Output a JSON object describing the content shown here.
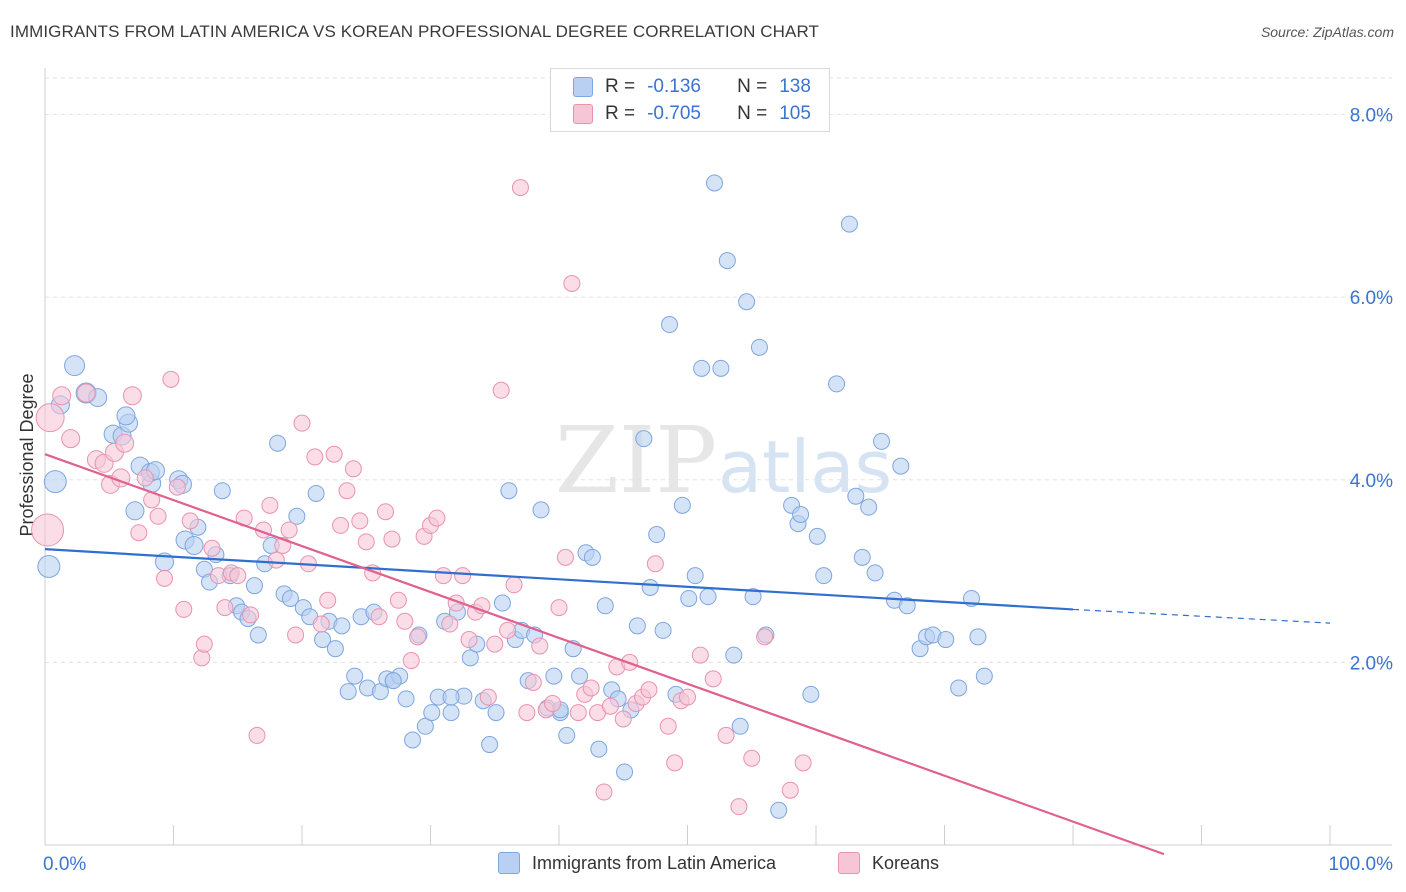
{
  "title": "IMMIGRANTS FROM LATIN AMERICA VS KOREAN PROFESSIONAL DEGREE CORRELATION CHART",
  "source": "Source: ZipAtlas.com",
  "watermark": {
    "zip": "ZIP",
    "atlas": "atlas"
  },
  "legend": {
    "rows": [
      {
        "r_label": "R =",
        "r_value": "-0.136",
        "n_label": "N =",
        "n_value": "138"
      },
      {
        "r_label": "R =",
        "r_value": "-0.705",
        "n_label": "N =",
        "n_value": "105"
      }
    ]
  },
  "bottom_legend": [
    "Immigrants from Latin America",
    "Koreans"
  ],
  "colors": {
    "blue_fill": "#b9d0f2",
    "blue_stroke": "#7ea6e0",
    "blue_line": "#2f6fcf",
    "pink_fill": "#f7c6d6",
    "pink_stroke": "#ea92b0",
    "pink_line": "#e0608e",
    "tick_label": "#3b74d0",
    "grid": "#e3e3e3"
  },
  "chart_data": {
    "type": "scatter",
    "xlabel": "",
    "ylabel": "Professional Degree",
    "xlim": [
      0,
      100
    ],
    "ylim": [
      0,
      8.4
    ],
    "x_tick_labels": [
      "0.0%",
      "100.0%"
    ],
    "y_ticks": [
      2,
      4,
      6,
      8
    ],
    "y_tick_labels": [
      "2.0%",
      "4.0%",
      "6.0%",
      "8.0%"
    ],
    "grid": "horizontal dashed",
    "series": [
      {
        "name": "Immigrants from Latin America",
        "trend": {
          "x0": 0,
          "y0": 3.24,
          "x1": 80,
          "y1": 2.58,
          "dash_to_x": 100,
          "dash_to_y": 2.43
        },
        "points": [
          [
            0.3,
            3.05,
            11
          ],
          [
            0.8,
            3.98,
            11
          ],
          [
            1.2,
            4.82,
            9
          ],
          [
            2.3,
            5.25,
            10
          ],
          [
            3.2,
            4.95,
            10
          ],
          [
            4.1,
            4.9,
            9
          ],
          [
            5.3,
            4.5,
            9
          ],
          [
            6.0,
            4.48,
            9
          ],
          [
            6.5,
            4.62,
            9
          ],
          [
            6.3,
            4.7,
            9
          ],
          [
            7.0,
            3.66,
            9
          ],
          [
            7.4,
            4.15,
            9
          ],
          [
            8.3,
            3.96,
            9
          ],
          [
            8.2,
            4.08,
            9
          ],
          [
            8.6,
            4.1,
            9
          ],
          [
            9.3,
            3.1,
            9
          ],
          [
            10.4,
            4.0,
            9
          ],
          [
            10.7,
            3.95,
            9
          ],
          [
            10.9,
            3.34,
            9
          ],
          [
            11.6,
            3.28,
            9
          ],
          [
            11.9,
            3.48,
            8
          ],
          [
            12.4,
            3.02,
            8
          ],
          [
            12.8,
            2.88,
            8
          ],
          [
            13.3,
            3.18,
            8
          ],
          [
            13.8,
            3.88,
            8
          ],
          [
            14.4,
            2.95,
            8
          ],
          [
            14.9,
            2.62,
            8
          ],
          [
            15.3,
            2.55,
            8
          ],
          [
            15.8,
            2.48,
            8
          ],
          [
            16.3,
            2.84,
            8
          ],
          [
            16.6,
            2.3,
            8
          ],
          [
            17.1,
            3.08,
            8
          ],
          [
            17.6,
            3.28,
            8
          ],
          [
            18.1,
            4.4,
            8
          ],
          [
            18.6,
            2.75,
            8
          ],
          [
            19.1,
            2.7,
            8
          ],
          [
            19.6,
            3.6,
            8
          ],
          [
            20.1,
            2.6,
            8
          ],
          [
            20.6,
            2.5,
            8
          ],
          [
            21.1,
            3.85,
            8
          ],
          [
            21.6,
            2.25,
            8
          ],
          [
            22.1,
            2.45,
            8
          ],
          [
            22.6,
            2.15,
            8
          ],
          [
            23.1,
            2.4,
            8
          ],
          [
            23.6,
            1.68,
            8
          ],
          [
            24.1,
            1.85,
            8
          ],
          [
            24.6,
            2.5,
            8
          ],
          [
            25.1,
            1.72,
            8
          ],
          [
            25.6,
            2.55,
            8
          ],
          [
            26.1,
            1.68,
            8
          ],
          [
            26.6,
            1.82,
            8
          ],
          [
            27.1,
            1.8,
            8
          ],
          [
            27.6,
            1.85,
            8
          ],
          [
            28.1,
            1.6,
            8
          ],
          [
            28.6,
            1.15,
            8
          ],
          [
            29.1,
            2.3,
            8
          ],
          [
            29.6,
            1.3,
            8
          ],
          [
            30.1,
            1.45,
            8
          ],
          [
            30.6,
            1.62,
            8
          ],
          [
            31.1,
            2.45,
            8
          ],
          [
            31.6,
            1.45,
            8
          ],
          [
            32.1,
            2.55,
            8
          ],
          [
            32.6,
            1.63,
            8
          ],
          [
            33.1,
            2.05,
            8
          ],
          [
            33.6,
            2.2,
            8
          ],
          [
            34.1,
            1.58,
            8
          ],
          [
            34.6,
            1.1,
            8
          ],
          [
            35.1,
            1.45,
            8
          ],
          [
            35.6,
            2.65,
            8
          ],
          [
            36.1,
            3.88,
            8
          ],
          [
            36.6,
            2.25,
            8
          ],
          [
            37.1,
            2.35,
            8
          ],
          [
            37.6,
            1.8,
            8
          ],
          [
            38.1,
            2.3,
            8
          ],
          [
            38.6,
            3.67,
            8
          ],
          [
            39.1,
            1.5,
            8
          ],
          [
            39.6,
            1.85,
            8
          ],
          [
            40.1,
            1.45,
            8
          ],
          [
            40.6,
            1.2,
            8
          ],
          [
            41.1,
            2.15,
            8
          ],
          [
            41.6,
            1.85,
            8
          ],
          [
            42.1,
            3.2,
            8
          ],
          [
            42.6,
            3.15,
            8
          ],
          [
            43.1,
            1.05,
            8
          ],
          [
            43.6,
            2.62,
            8
          ],
          [
            44.1,
            1.7,
            8
          ],
          [
            44.6,
            1.6,
            8
          ],
          [
            45.1,
            0.8,
            8
          ],
          [
            45.6,
            1.48,
            8
          ],
          [
            46.1,
            2.4,
            8
          ],
          [
            46.6,
            4.45,
            8
          ],
          [
            47.1,
            2.82,
            8
          ],
          [
            47.6,
            3.4,
            8
          ],
          [
            48.1,
            2.35,
            8
          ],
          [
            48.6,
            5.7,
            8
          ],
          [
            49.1,
            1.65,
            8
          ],
          [
            49.6,
            3.72,
            8
          ],
          [
            50.1,
            2.7,
            8
          ],
          [
            50.6,
            2.95,
            8
          ],
          [
            51.1,
            5.22,
            8
          ],
          [
            51.6,
            2.72,
            8
          ],
          [
            52.1,
            7.25,
            8
          ],
          [
            52.6,
            5.22,
            8
          ],
          [
            53.1,
            6.4,
            8
          ],
          [
            53.6,
            2.08,
            8
          ],
          [
            54.1,
            1.3,
            8
          ],
          [
            54.6,
            5.95,
            8
          ],
          [
            55.1,
            2.72,
            8
          ],
          [
            55.6,
            5.45,
            8
          ],
          [
            56.1,
            2.3,
            8
          ],
          [
            57.1,
            0.38,
            8
          ],
          [
            58.1,
            3.72,
            8
          ],
          [
            58.6,
            3.52,
            8
          ],
          [
            58.8,
            3.62,
            8
          ],
          [
            59.6,
            1.65,
            8
          ],
          [
            60.1,
            3.38,
            8
          ],
          [
            60.6,
            2.95,
            8
          ],
          [
            61.6,
            5.05,
            8
          ],
          [
            62.6,
            6.8,
            8
          ],
          [
            63.1,
            3.82,
            8
          ],
          [
            63.6,
            3.15,
            8
          ],
          [
            64.1,
            3.7,
            8
          ],
          [
            64.6,
            2.98,
            8
          ],
          [
            65.1,
            4.42,
            8
          ],
          [
            66.1,
            2.68,
            8
          ],
          [
            66.6,
            4.15,
            8
          ],
          [
            67.1,
            2.62,
            8
          ],
          [
            68.1,
            2.15,
            8
          ],
          [
            68.6,
            2.28,
            8
          ],
          [
            69.1,
            2.3,
            8
          ],
          [
            70.1,
            2.25,
            8
          ],
          [
            71.1,
            1.72,
            8
          ],
          [
            72.1,
            2.7,
            8
          ],
          [
            72.6,
            2.28,
            8
          ],
          [
            73.1,
            1.85,
            8
          ],
          [
            27.1,
            1.8,
            8
          ],
          [
            31.6,
            1.62,
            8
          ],
          [
            40.1,
            1.48,
            8
          ]
        ]
      },
      {
        "name": "Koreans",
        "trend": {
          "x0": 0,
          "y0": 4.28,
          "x1": 100,
          "y1": -0.75
        },
        "points": [
          [
            0.2,
            3.45,
            16
          ],
          [
            0.4,
            4.68,
            14
          ],
          [
            1.3,
            4.92,
            9
          ],
          [
            2.0,
            4.45,
            9
          ],
          [
            3.2,
            4.95,
            9
          ],
          [
            4.0,
            4.22,
            9
          ],
          [
            4.6,
            4.18,
            9
          ],
          [
            5.1,
            3.95,
            9
          ],
          [
            5.4,
            4.3,
            9
          ],
          [
            5.9,
            4.02,
            9
          ],
          [
            6.2,
            4.4,
            9
          ],
          [
            6.8,
            4.92,
            9
          ],
          [
            7.3,
            3.42,
            8
          ],
          [
            7.8,
            4.02,
            8
          ],
          [
            8.3,
            3.78,
            8
          ],
          [
            8.8,
            3.6,
            8
          ],
          [
            9.3,
            2.92,
            8
          ],
          [
            9.8,
            5.1,
            8
          ],
          [
            10.3,
            3.92,
            8
          ],
          [
            10.8,
            2.58,
            8
          ],
          [
            11.3,
            3.55,
            8
          ],
          [
            12.2,
            2.05,
            8
          ],
          [
            12.4,
            2.2,
            8
          ],
          [
            13.0,
            3.25,
            8
          ],
          [
            13.5,
            2.95,
            8
          ],
          [
            14.0,
            2.6,
            8
          ],
          [
            14.5,
            2.98,
            8
          ],
          [
            15.0,
            2.95,
            8
          ],
          [
            15.5,
            3.58,
            8
          ],
          [
            16.0,
            2.52,
            8
          ],
          [
            16.5,
            1.2,
            8
          ],
          [
            17.0,
            3.45,
            8
          ],
          [
            17.5,
            3.72,
            8
          ],
          [
            18.0,
            3.12,
            8
          ],
          [
            18.5,
            3.28,
            8
          ],
          [
            19.0,
            3.45,
            8
          ],
          [
            19.5,
            2.3,
            8
          ],
          [
            20.0,
            4.62,
            8
          ],
          [
            20.5,
            3.08,
            8
          ],
          [
            21.0,
            4.25,
            8
          ],
          [
            21.5,
            2.42,
            8
          ],
          [
            22.0,
            2.68,
            8
          ],
          [
            22.5,
            4.28,
            8
          ],
          [
            23.0,
            3.5,
            8
          ],
          [
            23.5,
            3.88,
            8
          ],
          [
            24.0,
            4.12,
            8
          ],
          [
            24.5,
            3.55,
            8
          ],
          [
            25.0,
            3.32,
            8
          ],
          [
            25.5,
            2.98,
            8
          ],
          [
            26.0,
            2.5,
            8
          ],
          [
            26.5,
            3.65,
            8
          ],
          [
            27.0,
            3.35,
            8
          ],
          [
            27.5,
            2.68,
            8
          ],
          [
            28.0,
            2.45,
            8
          ],
          [
            28.5,
            2.02,
            8
          ],
          [
            29.0,
            2.28,
            8
          ],
          [
            29.5,
            3.38,
            8
          ],
          [
            30.0,
            3.5,
            8
          ],
          [
            30.5,
            3.58,
            8
          ],
          [
            31.0,
            2.95,
            8
          ],
          [
            31.5,
            2.42,
            8
          ],
          [
            32.0,
            2.65,
            8
          ],
          [
            32.5,
            2.95,
            8
          ],
          [
            33.0,
            2.25,
            8
          ],
          [
            33.5,
            2.55,
            8
          ],
          [
            34.0,
            2.62,
            8
          ],
          [
            34.5,
            1.62,
            8
          ],
          [
            35.0,
            2.2,
            8
          ],
          [
            35.5,
            4.98,
            8
          ],
          [
            36.0,
            2.35,
            8
          ],
          [
            36.5,
            2.85,
            8
          ],
          [
            37.0,
            7.2,
            8
          ],
          [
            37.5,
            1.45,
            8
          ],
          [
            38.0,
            1.78,
            8
          ],
          [
            38.5,
            2.18,
            8
          ],
          [
            39.0,
            1.48,
            8
          ],
          [
            39.5,
            1.55,
            8
          ],
          [
            40.0,
            2.6,
            8
          ],
          [
            40.5,
            3.15,
            8
          ],
          [
            41.0,
            6.15,
            8
          ],
          [
            41.5,
            1.45,
            8
          ],
          [
            42.0,
            1.65,
            8
          ],
          [
            42.5,
            1.72,
            8
          ],
          [
            43.0,
            1.45,
            8
          ],
          [
            43.5,
            0.58,
            8
          ],
          [
            44.0,
            1.52,
            8
          ],
          [
            44.5,
            1.95,
            8
          ],
          [
            45.0,
            1.38,
            8
          ],
          [
            45.5,
            2.0,
            8
          ],
          [
            46.0,
            1.55,
            8
          ],
          [
            46.5,
            1.62,
            8
          ],
          [
            47.0,
            1.7,
            8
          ],
          [
            47.5,
            3.08,
            8
          ],
          [
            48.5,
            1.3,
            8
          ],
          [
            49.0,
            0.9,
            8
          ],
          [
            49.5,
            1.58,
            8
          ],
          [
            50.0,
            1.62,
            8
          ],
          [
            51.0,
            2.08,
            8
          ],
          [
            52.0,
            1.82,
            8
          ],
          [
            53.0,
            1.2,
            8
          ],
          [
            54.0,
            0.42,
            8
          ],
          [
            55.0,
            0.95,
            8
          ],
          [
            56.0,
            2.28,
            8
          ],
          [
            58.0,
            0.6,
            8
          ],
          [
            59.0,
            0.9,
            8
          ]
        ]
      }
    ]
  }
}
